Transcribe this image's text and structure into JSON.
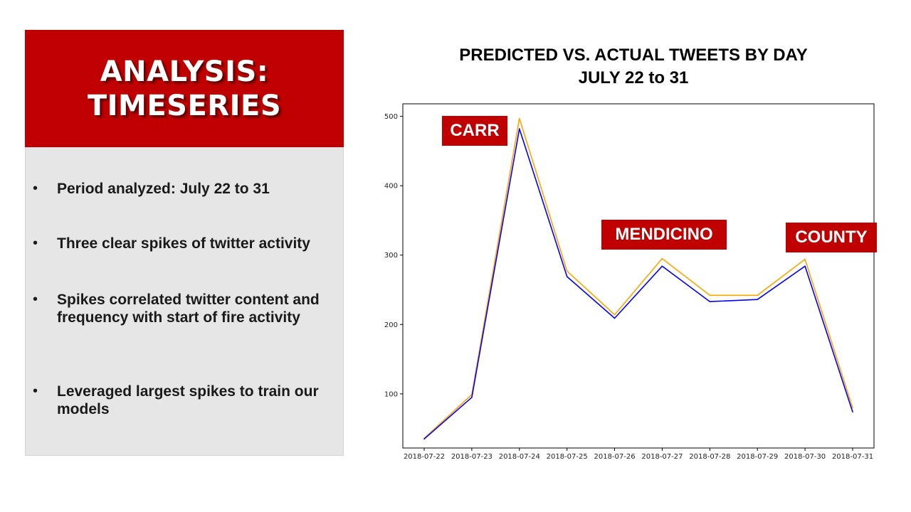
{
  "left_panel": {
    "title_lines": [
      "ANALYSIS:",
      "TIMESERIES"
    ],
    "bullets": [
      "Period analyzed: July 22 to 31",
      "Three clear spikes of twitter activity",
      "Spikes correlated twitter content and frequency with start of fire activity",
      "Leveraged largest spikes to train our models"
    ]
  },
  "chart_data": {
    "type": "line",
    "title": "PREDICTED VS. ACTUAL TWEETS BY DAY",
    "subtitle": "JULY 22 to 31",
    "x": [
      "2018-07-22",
      "2018-07-23",
      "2018-07-24",
      "2018-07-25",
      "2018-07-26",
      "2018-07-27",
      "2018-07-28",
      "2018-07-29",
      "2018-07-30",
      "2018-07-31"
    ],
    "series": [
      {
        "color": "#ffa500",
        "values": [
          36,
          99,
          497,
          277,
          214,
          295,
          242,
          242,
          294,
          80
        ]
      },
      {
        "color": "#0000ff",
        "values": [
          35,
          95,
          482,
          269,
          209,
          284,
          233,
          236,
          284,
          74
        ]
      }
    ],
    "ylim": [
      22,
      518
    ],
    "yticks": [
      100,
      200,
      300,
      400,
      500
    ],
    "grid": false,
    "annotations": [
      "CARR",
      "MENDICINO",
      "COUNTY"
    ]
  }
}
